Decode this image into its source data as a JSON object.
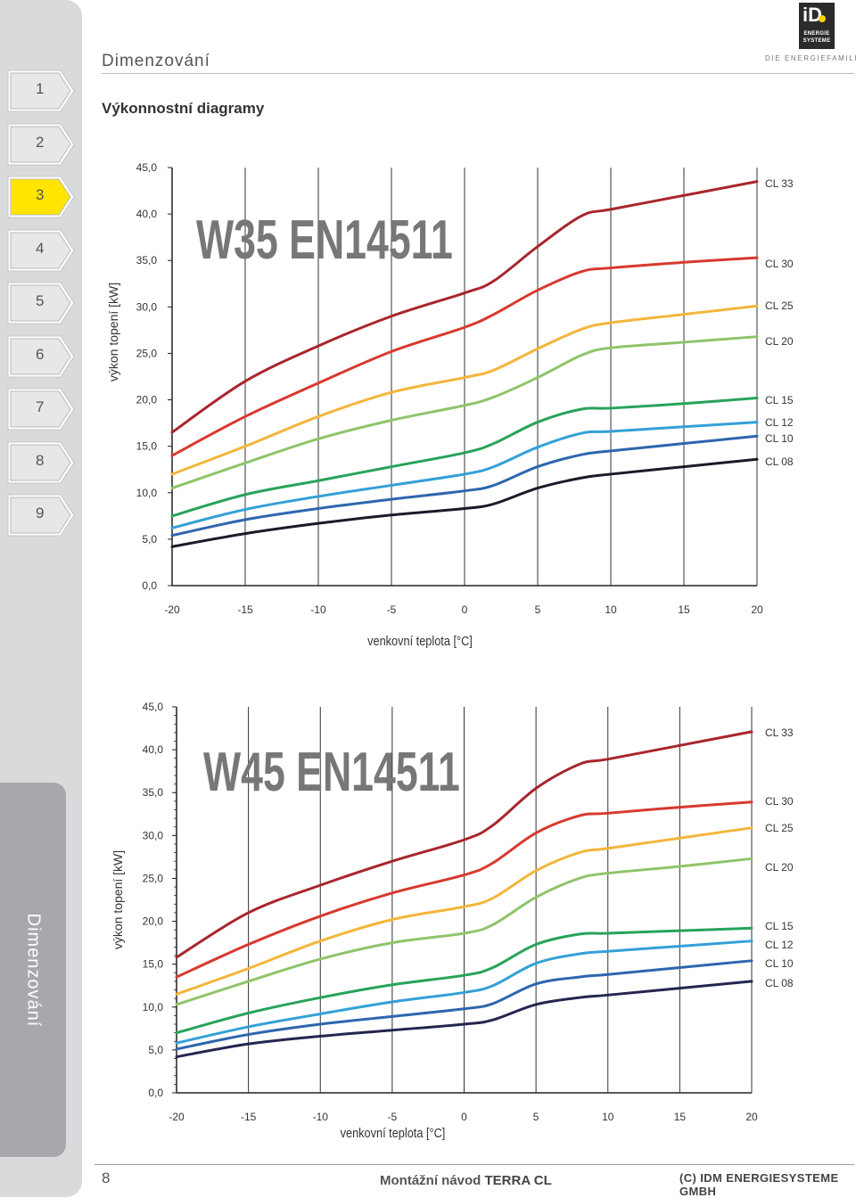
{
  "header": {
    "title": "Dimenzování",
    "logo_text_1": "ENERGIE",
    "logo_text_2": "SYSTEME",
    "logo_mark": "iD",
    "tagline": "DIE ENERGIEFAMILIE"
  },
  "sidebar": {
    "items": [
      {
        "label": "1",
        "active": false
      },
      {
        "label": "2",
        "active": false
      },
      {
        "label": "3",
        "active": true
      },
      {
        "label": "4",
        "active": false
      },
      {
        "label": "5",
        "active": false
      },
      {
        "label": "6",
        "active": false
      },
      {
        "label": "7",
        "active": false
      },
      {
        "label": "8",
        "active": false
      },
      {
        "label": "9",
        "active": false
      }
    ],
    "tab_label": "Dimenzování",
    "active_color": "#ffe500"
  },
  "section_title": "Výkonnostní diagramy",
  "chart_data": [
    {
      "type": "line",
      "title": "W35 EN14511",
      "xlabel": "venkovní  teplota [°C]",
      "ylabel": "výkon topení [kW]",
      "xlim": [
        -20,
        20
      ],
      "ylim": [
        0,
        45
      ],
      "xticks": [
        "-20",
        "-15",
        "-10",
        "-5",
        "0",
        "5",
        "10",
        "15",
        "20"
      ],
      "yticks": [
        "0,0",
        "5,0",
        "10,0",
        "15,0",
        "20,0",
        "25,0",
        "30,0",
        "35,0",
        "40,0",
        "45,0"
      ],
      "grid": true,
      "legend": "right",
      "series": [
        {
          "name": "CL 33",
          "color": "#a8262c",
          "points": [
            [
              -20,
              16.5
            ],
            [
              -15,
              22.0
            ],
            [
              -10,
              25.8
            ],
            [
              -5,
              29.0
            ],
            [
              0,
              31.5
            ],
            [
              2,
              32.8
            ],
            [
              5,
              36.5
            ],
            [
              8,
              39.8
            ],
            [
              10,
              40.5
            ],
            [
              15,
              42.0
            ],
            [
              20,
              43.5
            ]
          ]
        },
        {
          "name": "CL 30",
          "color": "#d8392f",
          "points": [
            [
              -20,
              14.0
            ],
            [
              -15,
              18.2
            ],
            [
              -10,
              21.8
            ],
            [
              -5,
              25.2
            ],
            [
              0,
              27.8
            ],
            [
              2,
              29.2
            ],
            [
              5,
              31.8
            ],
            [
              8,
              33.8
            ],
            [
              10,
              34.2
            ],
            [
              15,
              34.8
            ],
            [
              20,
              35.3
            ]
          ]
        },
        {
          "name": "CL 25",
          "color": "#f4b53a",
          "points": [
            [
              -20,
              12.0
            ],
            [
              -15,
              15.0
            ],
            [
              -10,
              18.2
            ],
            [
              -5,
              20.8
            ],
            [
              0,
              22.4
            ],
            [
              2,
              23.2
            ],
            [
              5,
              25.5
            ],
            [
              8,
              27.6
            ],
            [
              10,
              28.3
            ],
            [
              15,
              29.2
            ],
            [
              20,
              30.1
            ]
          ]
        },
        {
          "name": "CL 20",
          "color": "#8fc46a",
          "points": [
            [
              -20,
              10.5
            ],
            [
              -15,
              13.2
            ],
            [
              -10,
              15.8
            ],
            [
              -5,
              17.8
            ],
            [
              0,
              19.4
            ],
            [
              2,
              20.3
            ],
            [
              5,
              22.4
            ],
            [
              8,
              24.8
            ],
            [
              10,
              25.6
            ],
            [
              15,
              26.2
            ],
            [
              20,
              26.8
            ]
          ]
        },
        {
          "name": "CL 15",
          "color": "#27a35a",
          "points": [
            [
              -20,
              7.5
            ],
            [
              -15,
              9.8
            ],
            [
              -10,
              11.3
            ],
            [
              -5,
              12.8
            ],
            [
              0,
              14.3
            ],
            [
              2,
              15.3
            ],
            [
              5,
              17.6
            ],
            [
              8,
              19.0
            ],
            [
              10,
              19.1
            ],
            [
              15,
              19.6
            ],
            [
              20,
              20.2
            ]
          ]
        },
        {
          "name": "CL 12",
          "color": "#34a0d6",
          "points": [
            [
              -20,
              6.2
            ],
            [
              -15,
              8.2
            ],
            [
              -10,
              9.6
            ],
            [
              -5,
              10.8
            ],
            [
              0,
              12.0
            ],
            [
              2,
              12.8
            ],
            [
              5,
              14.9
            ],
            [
              8,
              16.4
            ],
            [
              10,
              16.6
            ],
            [
              15,
              17.1
            ],
            [
              20,
              17.6
            ]
          ]
        },
        {
          "name": "CL 10",
          "color": "#2e66ad",
          "points": [
            [
              -20,
              5.4
            ],
            [
              -15,
              7.1
            ],
            [
              -10,
              8.3
            ],
            [
              -5,
              9.3
            ],
            [
              0,
              10.2
            ],
            [
              2,
              10.8
            ],
            [
              5,
              12.8
            ],
            [
              8,
              14.1
            ],
            [
              10,
              14.5
            ],
            [
              15,
              15.3
            ],
            [
              20,
              16.1
            ]
          ]
        },
        {
          "name": "CL 08",
          "color": "#1a1a2a",
          "points": [
            [
              -20,
              4.2
            ],
            [
              -15,
              5.6
            ],
            [
              -10,
              6.7
            ],
            [
              -5,
              7.6
            ],
            [
              0,
              8.3
            ],
            [
              2,
              8.8
            ],
            [
              5,
              10.5
            ],
            [
              8,
              11.6
            ],
            [
              10,
              12.0
            ],
            [
              15,
              12.8
            ],
            [
              20,
              13.6
            ]
          ]
        }
      ]
    },
    {
      "type": "line",
      "title": "W45 EN14511",
      "xlabel": "venkovní  teplota [°C]",
      "ylabel": "výkon topení [kW]",
      "xlim": [
        -20,
        20
      ],
      "ylim": [
        0,
        45
      ],
      "xticks": [
        "-20",
        "-15",
        "-10",
        "-5",
        "0",
        "5",
        "10",
        "15",
        "20"
      ],
      "yticks": [
        "0,0",
        "5,0",
        "10,0",
        "15,0",
        "20,0",
        "25,0",
        "30,0",
        "35,0",
        "40,0",
        "45,0"
      ],
      "grid": true,
      "legend": "right",
      "series": [
        {
          "name": "CL 33",
          "color": "#a8262c",
          "points": [
            [
              -20,
              15.8
            ],
            [
              -15,
              21.0
            ],
            [
              -10,
              24.2
            ],
            [
              -5,
              27.0
            ],
            [
              0,
              29.5
            ],
            [
              2,
              31.2
            ],
            [
              5,
              35.5
            ],
            [
              8,
              38.3
            ],
            [
              10,
              38.9
            ],
            [
              15,
              40.5
            ],
            [
              20,
              42.1
            ]
          ]
        },
        {
          "name": "CL 30",
          "color": "#d8392f",
          "points": [
            [
              -20,
              13.5
            ],
            [
              -15,
              17.3
            ],
            [
              -10,
              20.6
            ],
            [
              -5,
              23.3
            ],
            [
              0,
              25.4
            ],
            [
              2,
              26.8
            ],
            [
              5,
              30.3
            ],
            [
              8,
              32.3
            ],
            [
              10,
              32.6
            ],
            [
              15,
              33.3
            ],
            [
              20,
              33.9
            ]
          ]
        },
        {
          "name": "CL 25",
          "color": "#f4b53a",
          "points": [
            [
              -20,
              11.5
            ],
            [
              -15,
              14.5
            ],
            [
              -10,
              17.7
            ],
            [
              -5,
              20.2
            ],
            [
              0,
              21.7
            ],
            [
              2,
              22.7
            ],
            [
              5,
              25.9
            ],
            [
              8,
              28.0
            ],
            [
              10,
              28.5
            ],
            [
              15,
              29.7
            ],
            [
              20,
              30.9
            ]
          ]
        },
        {
          "name": "CL 20",
          "color": "#8fc46a",
          "points": [
            [
              -20,
              10.3
            ],
            [
              -15,
              13.0
            ],
            [
              -10,
              15.6
            ],
            [
              -5,
              17.5
            ],
            [
              0,
              18.6
            ],
            [
              2,
              19.6
            ],
            [
              5,
              22.8
            ],
            [
              8,
              25.0
            ],
            [
              10,
              25.6
            ],
            [
              15,
              26.4
            ],
            [
              20,
              27.3
            ]
          ]
        },
        {
          "name": "CL 15",
          "color": "#27a35a",
          "points": [
            [
              -20,
              7.0
            ],
            [
              -15,
              9.3
            ],
            [
              -10,
              11.1
            ],
            [
              -5,
              12.6
            ],
            [
              0,
              13.7
            ],
            [
              2,
              14.6
            ],
            [
              5,
              17.3
            ],
            [
              8,
              18.5
            ],
            [
              10,
              18.6
            ],
            [
              15,
              18.9
            ],
            [
              20,
              19.2
            ]
          ]
        },
        {
          "name": "CL 12",
          "color": "#34a0d6",
          "points": [
            [
              -20,
              5.8
            ],
            [
              -15,
              7.7
            ],
            [
              -10,
              9.2
            ],
            [
              -5,
              10.6
            ],
            [
              0,
              11.7
            ],
            [
              2,
              12.5
            ],
            [
              5,
              15.1
            ],
            [
              8,
              16.2
            ],
            [
              10,
              16.5
            ],
            [
              15,
              17.1
            ],
            [
              20,
              17.7
            ]
          ]
        },
        {
          "name": "CL 10",
          "color": "#2e66ad",
          "points": [
            [
              -20,
              5.1
            ],
            [
              -15,
              6.8
            ],
            [
              -10,
              8.0
            ],
            [
              -5,
              8.9
            ],
            [
              0,
              9.8
            ],
            [
              2,
              10.4
            ],
            [
              5,
              12.7
            ],
            [
              8,
              13.5
            ],
            [
              10,
              13.8
            ],
            [
              15,
              14.6
            ],
            [
              20,
              15.4
            ]
          ]
        },
        {
          "name": "CL 08",
          "color": "#242550",
          "points": [
            [
              -20,
              4.2
            ],
            [
              -15,
              5.7
            ],
            [
              -10,
              6.6
            ],
            [
              -5,
              7.3
            ],
            [
              0,
              8.0
            ],
            [
              2,
              8.5
            ],
            [
              5,
              10.3
            ],
            [
              8,
              11.1
            ],
            [
              10,
              11.4
            ],
            [
              15,
              12.2
            ],
            [
              20,
              13.0
            ]
          ]
        }
      ]
    }
  ],
  "footer": {
    "page_number": "8",
    "doc_title_plain": "Montážní návod ",
    "doc_title_bold": "TERRA CL",
    "copyright": "(C) IDM ENERGIESYSTEME GMBH"
  }
}
